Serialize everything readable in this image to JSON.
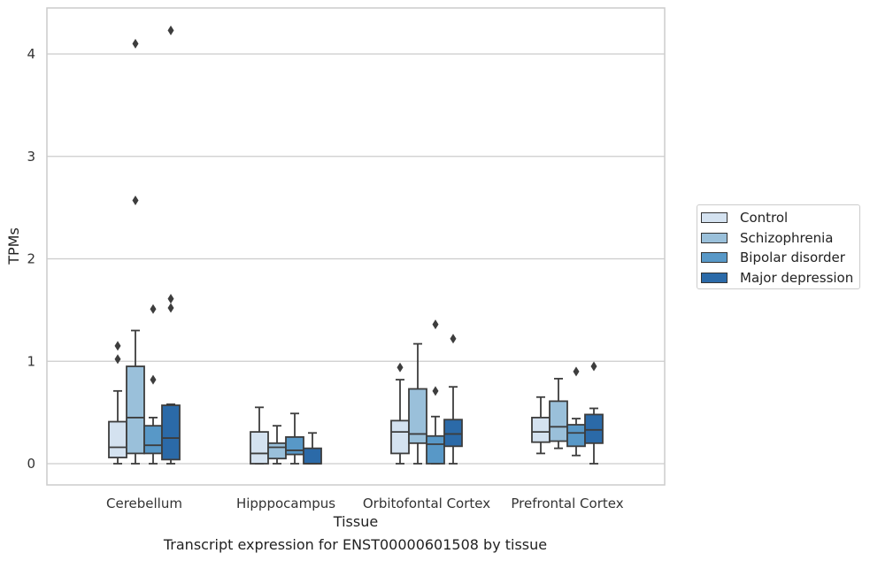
{
  "caption": "Transcript expression for ENST00000601508 by tissue",
  "chart_data": {
    "type": "boxplot",
    "xlabel": "Tissue",
    "ylabel": "TPMs",
    "ylim": [
      -0.2,
      4.45
    ],
    "yticks": [
      0,
      1,
      2,
      3,
      4
    ],
    "grid": "horizontal",
    "legend_position": "right",
    "categories": [
      "Cerebellum",
      "Hipppocampus",
      "Orbitofontal Cortex",
      "Prefrontal Cortex"
    ],
    "series": [
      {
        "name": "Control",
        "color": "#d4e2f0",
        "boxes": [
          {
            "whislo": 0.0,
            "q1": 0.06,
            "median": 0.16,
            "q3": 0.41,
            "whishi": 0.71,
            "fliers": [
              1.02,
              1.15
            ]
          },
          {
            "whislo": 0.0,
            "q1": 0.0,
            "median": 0.1,
            "q3": 0.31,
            "whishi": 0.55,
            "fliers": []
          },
          {
            "whislo": 0.0,
            "q1": 0.1,
            "median": 0.31,
            "q3": 0.42,
            "whishi": 0.82,
            "fliers": [
              0.94
            ]
          },
          {
            "whislo": 0.1,
            "q1": 0.21,
            "median": 0.31,
            "q3": 0.45,
            "whishi": 0.65,
            "fliers": []
          }
        ]
      },
      {
        "name": "Schizophrenia",
        "color": "#9ac0da",
        "boxes": [
          {
            "whislo": 0.0,
            "q1": 0.1,
            "median": 0.45,
            "q3": 0.95,
            "whishi": 1.3,
            "fliers": [
              2.57,
              4.1
            ]
          },
          {
            "whislo": 0.0,
            "q1": 0.05,
            "median": 0.16,
            "q3": 0.2,
            "whishi": 0.37,
            "fliers": []
          },
          {
            "whislo": 0.0,
            "q1": 0.2,
            "median": 0.29,
            "q3": 0.73,
            "whishi": 1.17,
            "fliers": []
          },
          {
            "whislo": 0.15,
            "q1": 0.22,
            "median": 0.36,
            "q3": 0.61,
            "whishi": 0.83,
            "fliers": []
          }
        ]
      },
      {
        "name": "Bipolar disorder",
        "color": "#5898c7",
        "boxes": [
          {
            "whislo": 0.0,
            "q1": 0.1,
            "median": 0.18,
            "q3": 0.37,
            "whishi": 0.45,
            "fliers": [
              0.82,
              1.51
            ]
          },
          {
            "whislo": 0.0,
            "q1": 0.09,
            "median": 0.13,
            "q3": 0.26,
            "whishi": 0.49,
            "fliers": []
          },
          {
            "whislo": 0.0,
            "q1": 0.0,
            "median": 0.19,
            "q3": 0.27,
            "whishi": 0.46,
            "fliers": [
              0.71,
              1.36
            ]
          },
          {
            "whislo": 0.08,
            "q1": 0.17,
            "median": 0.3,
            "q3": 0.38,
            "whishi": 0.44,
            "fliers": [
              0.9
            ]
          }
        ]
      },
      {
        "name": "Major depression",
        "color": "#2b6aa8",
        "boxes": [
          {
            "whislo": 0.0,
            "q1": 0.04,
            "median": 0.25,
            "q3": 0.57,
            "whishi": 0.58,
            "fliers": [
              1.52,
              1.61,
              4.23
            ]
          },
          {
            "whislo": 0.0,
            "q1": 0.0,
            "median": 0.0,
            "q3": 0.15,
            "whishi": 0.3,
            "fliers": []
          },
          {
            "whislo": 0.0,
            "q1": 0.17,
            "median": 0.29,
            "q3": 0.43,
            "whishi": 0.75,
            "fliers": [
              1.22
            ]
          },
          {
            "whislo": 0.0,
            "q1": 0.2,
            "median": 0.33,
            "q3": 0.48,
            "whishi": 0.54,
            "fliers": [
              0.95
            ]
          }
        ]
      }
    ]
  }
}
